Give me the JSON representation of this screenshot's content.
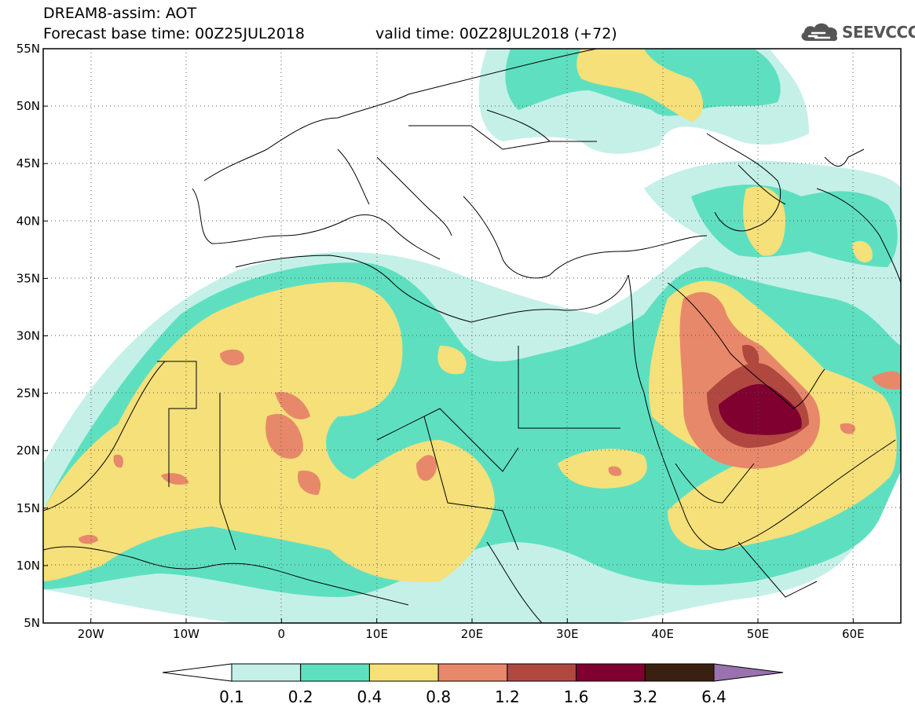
{
  "header": {
    "line1": "DREAM8-assim: AOT",
    "line2": "Forecast base time: 00Z25JUL2018",
    "valid": "valid time: 00Z28JUL2018 (+72)"
  },
  "logo": {
    "text": "SEEVCCC",
    "icon": "cloud-logo-icon"
  },
  "map": {
    "lon_range": [
      -25,
      65
    ],
    "lat_range": [
      5,
      55
    ],
    "lon_ticks": [
      {
        "value": -20,
        "label": "20W"
      },
      {
        "value": -10,
        "label": "10W"
      },
      {
        "value": 0,
        "label": "0"
      },
      {
        "value": 10,
        "label": "10E"
      },
      {
        "value": 20,
        "label": "20E"
      },
      {
        "value": 30,
        "label": "30E"
      },
      {
        "value": 40,
        "label": "40E"
      },
      {
        "value": 50,
        "label": "50E"
      },
      {
        "value": 60,
        "label": "60E"
      }
    ],
    "lat_ticks": [
      {
        "value": 55,
        "label": "55N"
      },
      {
        "value": 50,
        "label": "50N"
      },
      {
        "value": 45,
        "label": "45N"
      },
      {
        "value": 40,
        "label": "40N"
      },
      {
        "value": 35,
        "label": "35N"
      },
      {
        "value": 30,
        "label": "30N"
      },
      {
        "value": 25,
        "label": "25N"
      },
      {
        "value": 20,
        "label": "20N"
      },
      {
        "value": 15,
        "label": "15N"
      },
      {
        "value": 10,
        "label": "10N"
      },
      {
        "value": 5,
        "label": "5N"
      }
    ],
    "grid": "dotted"
  },
  "colorbar": {
    "levels": [
      "0.1",
      "0.2",
      "0.4",
      "0.8",
      "1.2",
      "1.6",
      "3.2",
      "6.4"
    ],
    "colors": [
      "#ffffff",
      "#c4f0e8",
      "#5ee0c0",
      "#f5e07a",
      "#e8886a",
      "#b04840",
      "#800030",
      "#3a2010",
      "#9a72b0"
    ]
  }
}
